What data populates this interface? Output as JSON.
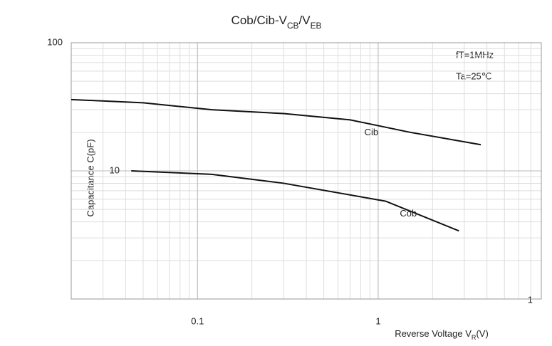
{
  "chart_data": {
    "type": "line",
    "title": [
      {
        "text": "Cob/Cib-V"
      },
      {
        "text": "CB",
        "sub": true
      },
      {
        "text": "/V"
      },
      {
        "text": "EB",
        "sub": true
      }
    ],
    "x_label": [
      {
        "text": "Reverse Voltage  V"
      },
      {
        "text": "R",
        "sub": true
      },
      {
        "text": "(V)"
      }
    ],
    "y_label": "Capacitance  C(pF)",
    "annotations": [
      "fT=1MHz",
      "Ta=25℃"
    ],
    "xscale": "log",
    "yscale": "log",
    "xlim": [
      0.02,
      8
    ],
    "xticks": [
      0.1,
      1
    ],
    "ylim": [
      1,
      100
    ],
    "yticks": [
      1,
      10,
      100
    ],
    "grid": true,
    "series": [
      {
        "name": "Cib",
        "color": "#111111",
        "x": [
          0.02,
          0.05,
          0.12,
          0.3,
          0.7,
          1.5,
          3.7
        ],
        "values": [
          36,
          34,
          30,
          28,
          25,
          20,
          16
        ]
      },
      {
        "name": "Cob",
        "color": "#111111",
        "x": [
          0.043,
          0.12,
          0.3,
          1.1,
          2.8
        ],
        "values": [
          10,
          9.4,
          8.0,
          5.8,
          3.4
        ]
      }
    ]
  }
}
